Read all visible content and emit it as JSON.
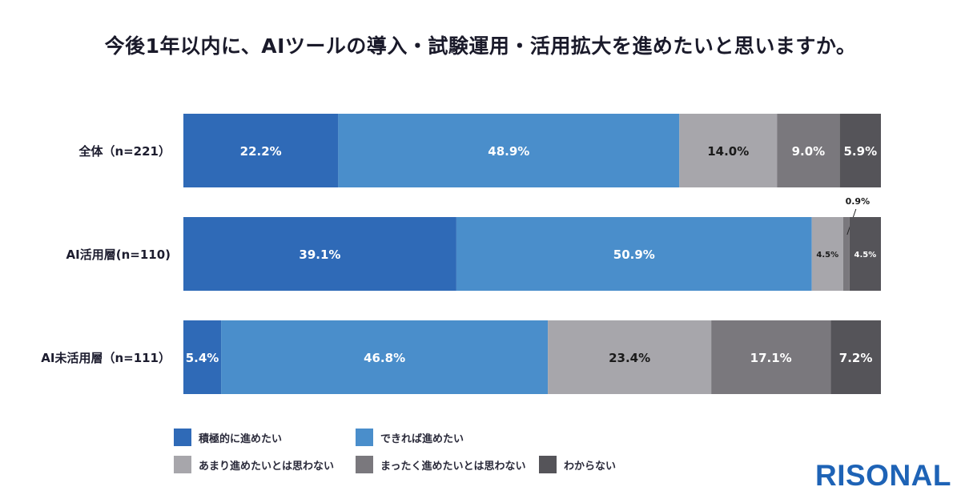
{
  "title": "今後1年以内に、AIツールの導入・試験運用・活用拡大を進めたいと思いますか。",
  "brand": "RISONAL",
  "colors": {
    "brand": "#1e63b6",
    "categories": [
      "#2f6ab7",
      "#4a8ecb",
      "#a7a6ab",
      "#7a787d",
      "#555459"
    ],
    "label_light": "#ffffff",
    "label_dark": "#1a1a1a"
  },
  "chart_data": {
    "type": "bar",
    "orientation": "horizontal",
    "stacked": true,
    "unit": "%",
    "categories": [
      "全体（n=221）",
      "AI活用層(n=110)",
      "AI未活用層（n=111）"
    ],
    "series": [
      {
        "name": "積極的に進めたい",
        "values": [
          22.2,
          39.1,
          5.4
        ],
        "labels": [
          "22.2%",
          "39.1%",
          "5.4%"
        ]
      },
      {
        "name": "できれば進めたい",
        "values": [
          48.9,
          50.9,
          46.8
        ],
        "labels": [
          "48.9%",
          "50.9%",
          "46.8%"
        ]
      },
      {
        "name": "あまり進めたいとは思わない",
        "values": [
          14.0,
          4.5,
          23.4
        ],
        "labels": [
          "14.0%",
          "4.5%",
          "23.4%"
        ]
      },
      {
        "name": "まったく進めたいとは思わない",
        "values": [
          9.0,
          0.9,
          17.1
        ],
        "labels": [
          "9.0%",
          "0.9%",
          "17.1%"
        ]
      },
      {
        "name": "わからない",
        "values": [
          5.9,
          4.5,
          7.2
        ],
        "labels": [
          "5.9%",
          "4.5%",
          "7.2%"
        ]
      }
    ],
    "xlim": [
      0,
      100
    ],
    "legend_position": "bottom",
    "grid": false
  }
}
